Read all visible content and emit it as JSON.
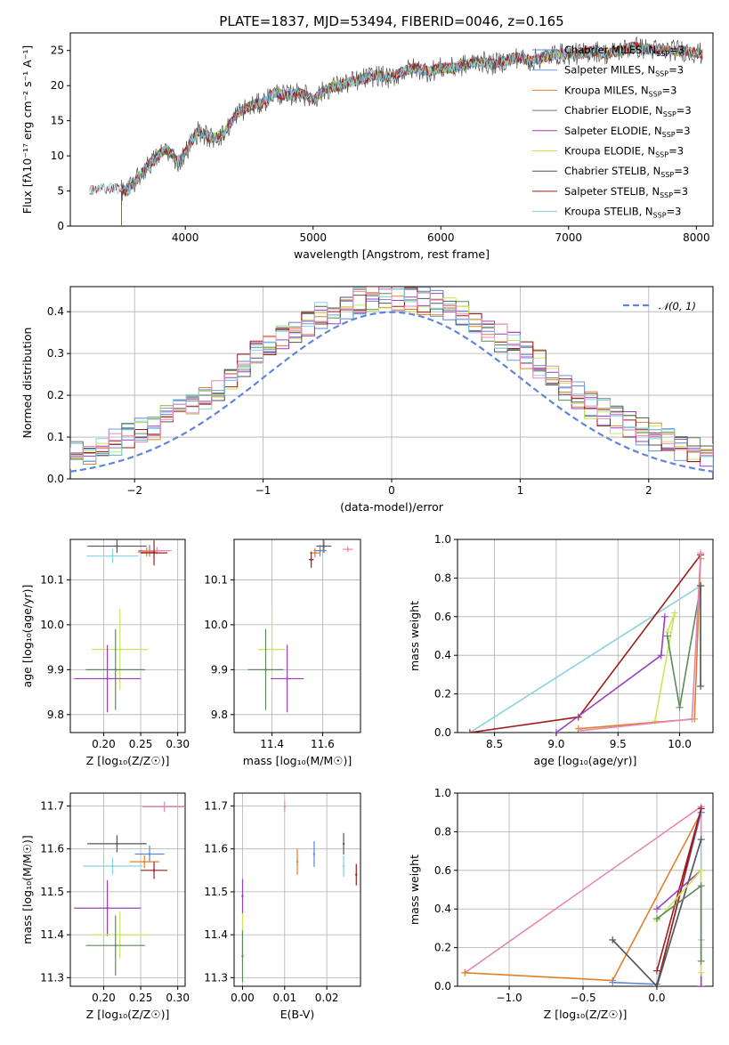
{
  "colors": {
    "Chabrier MILES": "#5f86d8",
    "Salpeter MILES": "#6d99e0",
    "Kroupa MILES": "#e0802a",
    "Chabrier ELODIE": "#5a8a5a",
    "Salpeter ELODIE": "#9b3fc0",
    "Kroupa ELODIE": "#c8e65a",
    "Chabrier STELIB": "#555555",
    "Salpeter STELIB": "#a11a1a",
    "Kroupa STELIB": "#86d3e0",
    "pink": "#e886b8",
    "normal": "#5f86d8"
  },
  "chart_data": [
    {
      "id": "spectrum",
      "type": "line",
      "title": "PLATE=1837, MJD=53494, FIBERID=0046, z=0.165",
      "xlabel": "wavelength [Angstrom, rest frame]",
      "ylabel": "Flux [fλ10⁻¹⁷ erg cm⁻² s⁻¹ A⁻¹]",
      "xlim": [
        3100,
        8130
      ],
      "ylim": [
        0,
        27.5
      ],
      "xticks": [
        "4000",
        "5000",
        "6000",
        "7000",
        "8000"
      ],
      "yticks": [
        "0",
        "5",
        "10",
        "15",
        "20",
        "25"
      ],
      "grid": false,
      "legend_position": "right",
      "series": [
        {
          "name": "Chabrier MILES, N_SSP=3",
          "color_key": "Chabrier MILES"
        },
        {
          "name": "Salpeter MILES, N_SSP=3",
          "color_key": "Salpeter MILES"
        },
        {
          "name": "Kroupa MILES, N_SSP=3",
          "color_key": "Kroupa MILES"
        },
        {
          "name": "Chabrier ELODIE, N_SSP=3",
          "color_key": "Chabrier ELODIE"
        },
        {
          "name": "Salpeter ELODIE, N_SSP=3",
          "color_key": "Salpeter ELODIE"
        },
        {
          "name": "Kroupa ELODIE, N_SSP=3",
          "color_key": "Kroupa ELODIE"
        },
        {
          "name": "Chabrier STELIB, N_SSP=3",
          "color_key": "Chabrier STELIB"
        },
        {
          "name": "Salpeter STELIB, N_SSP=3",
          "color_key": "Salpeter STELIB"
        },
        {
          "name": "Kroupa STELIB, N_SSP=3",
          "color_key": "Kroupa STELIB"
        }
      ],
      "continuum": {
        "x": [
          3250,
          3400,
          3550,
          3700,
          3850,
          3950,
          4100,
          4200,
          4300,
          4400,
          4500,
          4600,
          4700,
          4800,
          4900,
          5000,
          5100,
          5200,
          5300,
          5400,
          5500,
          5600,
          5700,
          5800,
          5900,
          6000,
          6100,
          6200,
          6300,
          6400,
          6500,
          6600,
          6700,
          6800,
          6900,
          7000,
          7100,
          7200,
          7300,
          7400,
          7500,
          7700,
          7900,
          8050
        ],
        "y": [
          5.0,
          5.5,
          5.0,
          8.5,
          11.0,
          9.0,
          13.5,
          12.5,
          13.0,
          16.0,
          17.0,
          17.5,
          19.0,
          18.5,
          19.0,
          18.0,
          19.5,
          20.0,
          20.5,
          21.0,
          21.5,
          21.0,
          22.0,
          22.5,
          22.0,
          22.5,
          22.5,
          23.0,
          23.5,
          23.0,
          23.5,
          24.0,
          23.5,
          24.0,
          24.5,
          24.5,
          24.5,
          25.0,
          24.5,
          25.0,
          25.5,
          25.0,
          25.0,
          24.5
        ]
      }
    },
    {
      "id": "residuals",
      "type": "line",
      "xlabel": "(data-model)/error",
      "ylabel": "Normed distribution",
      "xlim": [
        -2.5,
        2.5
      ],
      "ylim": [
        0,
        0.46
      ],
      "xticks": [
        "−2",
        "−1",
        "0",
        "1",
        "2"
      ],
      "yticks": [
        "0.0",
        "0.1",
        "0.2",
        "0.3",
        "0.4"
      ],
      "grid": true,
      "legend_position": "top-right",
      "legend": "𝒩(0, 1)",
      "normal_curve": {
        "mean": 0,
        "sigma": 1
      }
    },
    {
      "id": "age-Z",
      "type": "scatter",
      "xlabel": "Z [log₁₀(Z/Z☉)]",
      "ylabel": "age  [log₁₀(age/yr)]",
      "xlim": [
        0.155,
        0.31
      ],
      "ylim": [
        9.76,
        10.19
      ],
      "xticks": [
        "0.20",
        "0.25",
        "0.30"
      ],
      "yticks": [
        "9.8",
        "9.9",
        "10.0",
        "10.1"
      ],
      "grid": true,
      "points": [
        {
          "color_key": "Chabrier STELIB",
          "x": 0.218,
          "y": 10.175,
          "xerr": 0.04,
          "yerr": 0.015
        },
        {
          "color_key": "Kroupa STELIB",
          "x": 0.212,
          "y": 10.153,
          "xerr": 0.035,
          "yerr": 0.016
        },
        {
          "color_key": "Chabrier MILES",
          "x": 0.262,
          "y": 10.165,
          "xerr": 0.015,
          "yerr": 0.013
        },
        {
          "color_key": "Kroupa MILES",
          "x": 0.258,
          "y": 10.162,
          "xerr": 0.012,
          "yerr": 0.01
        },
        {
          "color_key": "pink",
          "x": 0.272,
          "y": 10.165,
          "xerr": 0.02,
          "yerr": 0.008
        },
        {
          "color_key": "Salpeter STELIB",
          "x": 0.268,
          "y": 10.16,
          "xerr": 0.018,
          "yerr": 0.028
        },
        {
          "color_key": "Kroupa ELODIE",
          "x": 0.222,
          "y": 9.945,
          "xerr": 0.038,
          "yerr": 0.09
        },
        {
          "color_key": "Chabrier ELODIE",
          "x": 0.216,
          "y": 9.9,
          "xerr": 0.04,
          "yerr": 0.09
        },
        {
          "color_key": "Salpeter ELODIE",
          "x": 0.205,
          "y": 9.88,
          "xerr": 0.045,
          "yerr": 0.075
        }
      ]
    },
    {
      "id": "age-mass",
      "type": "scatter",
      "xlabel": "mass [log₁₀(M/M☉)]",
      "ylim": [
        9.76,
        10.19
      ],
      "xlim": [
        11.25,
        11.75
      ],
      "xticks": [
        "11.4",
        "11.6"
      ],
      "yticks": [
        "9.8",
        "9.9",
        "10.0",
        "10.1"
      ],
      "grid": true,
      "points": [
        {
          "color_key": "Chabrier STELIB",
          "x": 11.605,
          "y": 10.175,
          "xerr": 0.03,
          "yerr": 0.015
        },
        {
          "color_key": "Chabrier MILES",
          "x": 11.59,
          "y": 10.165,
          "xerr": 0.025,
          "yerr": 0.013
        },
        {
          "color_key": "Kroupa MILES",
          "x": 11.57,
          "y": 10.16,
          "xerr": 0.02,
          "yerr": 0.01
        },
        {
          "color_key": "Salpeter STELIB",
          "x": 11.555,
          "y": 10.145,
          "xerr": 0.01,
          "yerr": 0.018
        },
        {
          "color_key": "pink",
          "x": 11.7,
          "y": 10.168,
          "xerr": 0.02,
          "yerr": 0.006
        },
        {
          "color_key": "Kroupa ELODIE",
          "x": 11.4,
          "y": 9.945,
          "xerr": 0.055,
          "yerr": 0.09
        },
        {
          "color_key": "Chabrier ELODIE",
          "x": 11.375,
          "y": 9.9,
          "xerr": 0.07,
          "yerr": 0.09
        },
        {
          "color_key": "Salpeter ELODIE",
          "x": 11.46,
          "y": 9.88,
          "xerr": 0.065,
          "yerr": 0.075
        }
      ]
    },
    {
      "id": "weight-age",
      "type": "line",
      "xlabel": "age  [log₁₀(age/yr)]",
      "ylabel": "mass weight",
      "xlim": [
        8.2,
        10.27
      ],
      "ylim": [
        0,
        1.0
      ],
      "xticks": [
        "8.5",
        "9.0",
        "9.5",
        "10.0"
      ],
      "yticks": [
        "0.0",
        "0.2",
        "0.4",
        "0.6",
        "0.8",
        "1.0"
      ],
      "grid": true,
      "series": [
        {
          "color_key": "Kroupa STELIB",
          "x": [
            8.3,
            10.17,
            10.17
          ],
          "y": [
            0.0,
            0.76,
            0.24
          ]
        },
        {
          "color_key": "Salpeter STELIB",
          "x": [
            8.3,
            9.18,
            10.17
          ],
          "y": [
            0.0,
            0.08,
            0.92
          ]
        },
        {
          "color_key": "Salpeter ELODIE",
          "x": [
            9.0,
            9.85,
            9.88
          ],
          "y": [
            0.0,
            0.4,
            0.6
          ]
        },
        {
          "color_key": "Kroupa ELODIE",
          "x": [
            9.8,
            9.96,
            9.9
          ],
          "y": [
            0.06,
            0.62,
            0.52
          ]
        },
        {
          "color_key": "Chabrier ELODIE",
          "x": [
            9.9,
            10.0,
            10.17
          ],
          "y": [
            0.5,
            0.13,
            0.76
          ]
        },
        {
          "color_key": "Kroupa MILES",
          "x": [
            9.18,
            10.12,
            10.17
          ],
          "y": [
            0.02,
            0.07,
            0.9
          ]
        },
        {
          "color_key": "pink",
          "x": [
            9.2,
            10.1,
            10.17
          ],
          "y": [
            0.01,
            0.07,
            0.93
          ]
        },
        {
          "color_key": "Chabrier STELIB",
          "x": [
            10.17,
            10.17
          ],
          "y": [
            0.24,
            0.76
          ]
        }
      ]
    },
    {
      "id": "mass-Z",
      "type": "scatter",
      "xlabel": "Z [log₁₀(Z/Z☉)]",
      "ylabel": "mass [log₁₀(M/M☉)]",
      "xlim": [
        0.155,
        0.31
      ],
      "ylim": [
        11.28,
        11.73
      ],
      "xticks": [
        "0.20",
        "0.25",
        "0.30"
      ],
      "yticks": [
        "11.3",
        "11.4",
        "11.5",
        "11.6",
        "11.7"
      ],
      "grid": true,
      "points": [
        {
          "color_key": "pink",
          "x": 0.282,
          "y": 11.698,
          "xerr": 0.03,
          "yerr": 0.012
        },
        {
          "color_key": "Chabrier STELIB",
          "x": 0.218,
          "y": 11.612,
          "xerr": 0.04,
          "yerr": 0.02
        },
        {
          "color_key": "Chabrier MILES",
          "x": 0.262,
          "y": 11.588,
          "xerr": 0.02,
          "yerr": 0.02
        },
        {
          "color_key": "Kroupa MILES",
          "x": 0.255,
          "y": 11.57,
          "xerr": 0.02,
          "yerr": 0.015
        },
        {
          "color_key": "Kroupa STELIB",
          "x": 0.212,
          "y": 11.56,
          "xerr": 0.04,
          "yerr": 0.02
        },
        {
          "color_key": "Salpeter STELIB",
          "x": 0.268,
          "y": 11.55,
          "xerr": 0.018,
          "yerr": 0.02
        },
        {
          "color_key": "Salpeter ELODIE",
          "x": 0.205,
          "y": 11.462,
          "xerr": 0.045,
          "yerr": 0.065
        },
        {
          "color_key": "Kroupa ELODIE",
          "x": 0.222,
          "y": 11.4,
          "xerr": 0.038,
          "yerr": 0.055
        },
        {
          "color_key": "Chabrier ELODIE",
          "x": 0.216,
          "y": 11.375,
          "xerr": 0.04,
          "yerr": 0.07
        }
      ]
    },
    {
      "id": "mass-ebv",
      "type": "scatter",
      "xlabel": "E(B-V)",
      "xlim": [
        -0.002,
        0.028
      ],
      "ylim": [
        11.28,
        11.73
      ],
      "xticks": [
        "0.00",
        "0.01",
        "0.02"
      ],
      "yticks": [
        "11.3",
        "11.4",
        "11.5",
        "11.6",
        "11.7"
      ],
      "grid": true,
      "points": [
        {
          "color_key": "pink",
          "x": 0.01,
          "y": 11.698,
          "yerr": 0.012
        },
        {
          "color_key": "Chabrier STELIB",
          "x": 0.024,
          "y": 11.612,
          "yerr": 0.025
        },
        {
          "color_key": "Chabrier MILES",
          "x": 0.017,
          "y": 11.588,
          "yerr": 0.03
        },
        {
          "color_key": "Kroupa MILES",
          "x": 0.013,
          "y": 11.57,
          "yerr": 0.03
        },
        {
          "color_key": "Kroupa STELIB",
          "x": 0.024,
          "y": 11.56,
          "yerr": 0.025
        },
        {
          "color_key": "Salpeter STELIB",
          "x": 0.027,
          "y": 11.54,
          "yerr": 0.025
        },
        {
          "color_key": "Salpeter ELODIE",
          "x": 0.0,
          "y": 11.49,
          "yerr": 0.04
        },
        {
          "color_key": "Kroupa ELODIE",
          "x": 0.0,
          "y": 11.4,
          "yerr": 0.05
        },
        {
          "color_key": "Chabrier ELODIE",
          "x": 0.0,
          "y": 11.35,
          "yerr": 0.06
        }
      ]
    },
    {
      "id": "weight-Z",
      "type": "line",
      "xlabel": "Z [log₁₀(Z/Z☉)]",
      "ylabel": "mass weight",
      "xlim": [
        -1.35,
        0.38
      ],
      "ylim": [
        0,
        1.0
      ],
      "xticks": [
        "−1.0",
        "−0.5",
        "0.0"
      ],
      "yticks": [
        "0.0",
        "0.2",
        "0.4",
        "0.6",
        "0.8",
        "1.0"
      ],
      "grid": true,
      "series": [
        {
          "color_key": "pink",
          "x": [
            -1.3,
            0.3,
            0.3
          ],
          "y": [
            0.07,
            0.93,
            0.0
          ]
        },
        {
          "color_key": "Kroupa MILES",
          "x": [
            -1.3,
            -0.3,
            0.3
          ],
          "y": [
            0.07,
            0.03,
            0.9
          ]
        },
        {
          "color_key": "Chabrier MILES",
          "x": [
            -0.3,
            0.0,
            0.3
          ],
          "y": [
            0.02,
            0.01,
            0.9
          ]
        },
        {
          "color_key": "Salpeter STELIB",
          "x": [
            0.0,
            0.3,
            0.0
          ],
          "y": [
            0.08,
            0.92,
            0.0
          ]
        },
        {
          "color_key": "Kroupa STELIB",
          "x": [
            -0.3,
            0.0,
            0.3,
            0.3
          ],
          "y": [
            0.24,
            0.0,
            0.76,
            0.24
          ]
        },
        {
          "color_key": "Chabrier STELIB",
          "x": [
            -0.3,
            0.0,
            0.3
          ],
          "y": [
            0.24,
            0.0,
            0.76
          ]
        },
        {
          "color_key": "Salpeter ELODIE",
          "x": [
            0.0,
            0.3,
            0.3
          ],
          "y": [
            0.4,
            0.6,
            0.0
          ]
        },
        {
          "color_key": "Kroupa ELODIE",
          "x": [
            0.0,
            0.3,
            0.3
          ],
          "y": [
            0.34,
            0.6,
            0.07
          ]
        },
        {
          "color_key": "Chabrier ELODIE",
          "x": [
            0.0,
            0.3,
            0.3
          ],
          "y": [
            0.35,
            0.52,
            0.13
          ]
        }
      ]
    }
  ]
}
